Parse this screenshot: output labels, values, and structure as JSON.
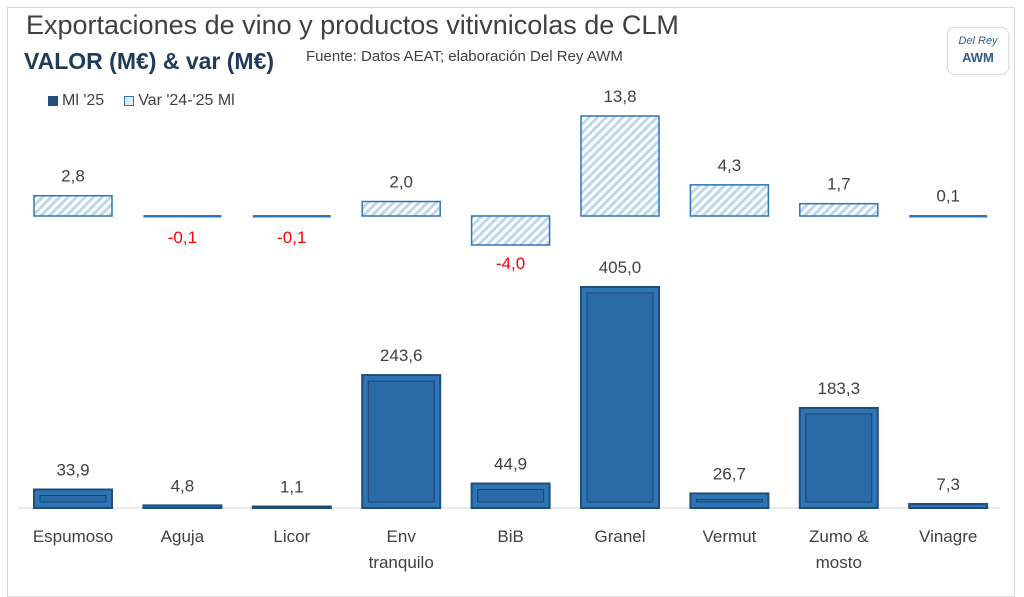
{
  "chart_data": {
    "type": "bar",
    "title": "Exportaciones de vino y productos vitivnicolas de CLM",
    "subtitle": "VALOR (M€) & var (M€)",
    "source": "Fuente: Datos AEAT; elaboración Del Rey AWM",
    "logo": {
      "line1": "Del Rey",
      "line2": "AWM"
    },
    "categories": [
      [
        "Espumoso"
      ],
      [
        "Aguja"
      ],
      [
        "Licor"
      ],
      [
        "Env",
        "tranquilo"
      ],
      [
        "BiB"
      ],
      [
        "Granel"
      ],
      [
        "Vermut"
      ],
      [
        "Zumo &",
        "mosto"
      ],
      [
        "Vinagre"
      ]
    ],
    "series": [
      {
        "name": "Ml '25",
        "values": [
          33.9,
          4.8,
          1.1,
          243.6,
          44.9,
          405.0,
          26.7,
          183.3,
          7.3
        ],
        "labels": [
          "33,9",
          "4,8",
          "1,1",
          "243,6",
          "44,9",
          "405,0",
          "26,7",
          "183,3",
          "7,3"
        ],
        "color": "#2e75b6"
      },
      {
        "name": "Var '24-'25 Ml",
        "values": [
          2.8,
          -0.1,
          -0.1,
          2.0,
          -4.0,
          13.8,
          4.3,
          1.7,
          0.1
        ],
        "labels": [
          "2,8",
          "-0,1",
          "-0,1",
          "2,0",
          "-4,0",
          "13,8",
          "4,3",
          "1,7",
          "0,1"
        ],
        "color": "#2e75b6",
        "negative_label_color": "#ff0000"
      }
    ],
    "legend": "top-left"
  }
}
